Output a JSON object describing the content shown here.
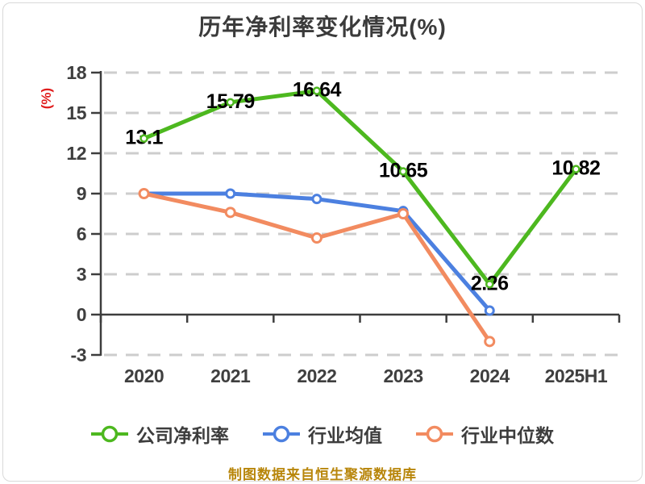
{
  "chart_data": {
    "type": "line",
    "title": "历年净利率变化情况(%)",
    "ylabel": "(%)",
    "categories": [
      "2020",
      "2021",
      "2022",
      "2023",
      "2024",
      "2025H1"
    ],
    "yticks": [
      18,
      15,
      12,
      9,
      6,
      3,
      0,
      -3
    ],
    "ylim": [
      -3,
      18
    ],
    "grid": "horizontal-dashed",
    "legend_position": "bottom",
    "series": [
      {
        "name": "公司净利率",
        "color": "#4db81f",
        "marker": "circle-open",
        "values": [
          13.1,
          15.79,
          16.64,
          10.65,
          2.26,
          10.82
        ],
        "point_labels": [
          "13.1",
          "15.79",
          "16.64",
          "10.65",
          "2.26",
          "10.82"
        ]
      },
      {
        "name": "行业均值",
        "color": "#4c80e0",
        "marker": "circle-open",
        "values": [
          9.0,
          9.0,
          8.6,
          7.7,
          0.3,
          null
        ],
        "point_labels": null
      },
      {
        "name": "行业中位数",
        "color": "#f28b60",
        "marker": "circle-open",
        "values": [
          9.0,
          7.6,
          5.7,
          7.5,
          -2.0,
          null
        ],
        "point_labels": null
      }
    ],
    "source_note": "制图数据来自恒生聚源数据库",
    "palette": {
      "axis": "#3d3d3d",
      "grid": "#cdcdcd",
      "tick_label": "#3f3f3f",
      "point_label": "#000000",
      "ylabel_color": "#e01e1e",
      "source_note_color": "#b8860b",
      "background": "#ffffff"
    }
  }
}
